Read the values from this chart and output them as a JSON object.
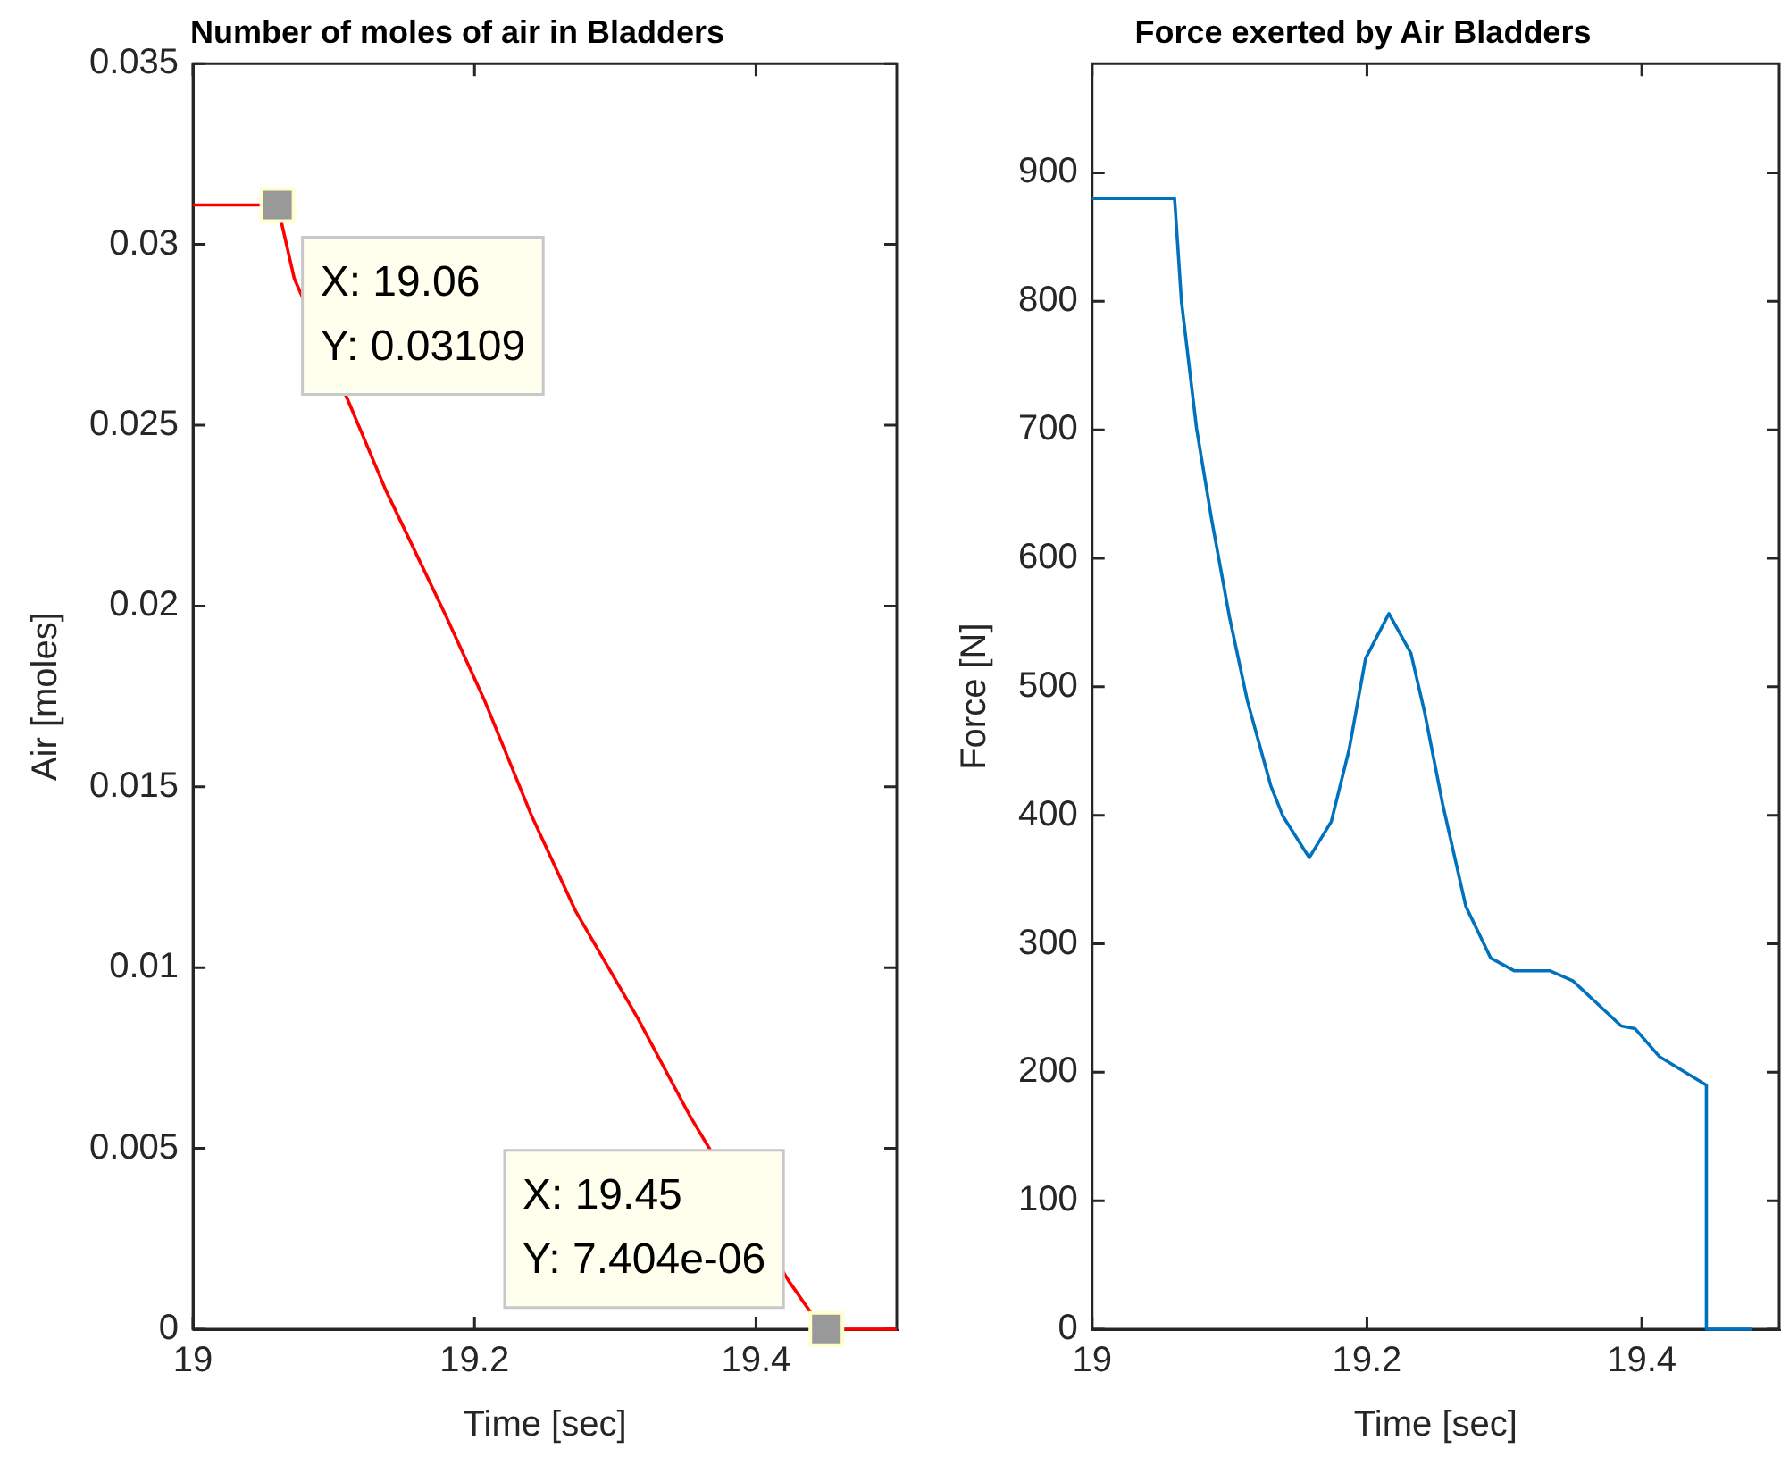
{
  "chart_data": [
    {
      "type": "line",
      "title": "Number of moles of air in Bladders",
      "xlabel": "Time [sec]",
      "ylabel": "Air [moles]",
      "xlim": [
        19,
        19.5
      ],
      "xticks": [
        19,
        19.2,
        19.4
      ],
      "ylim": [
        0,
        0.035
      ],
      "yticks": [
        0,
        0.005,
        0.01,
        0.015,
        0.02,
        0.025,
        0.03,
        0.035
      ],
      "series": [
        {
          "color": "#ff0000",
          "x": [
            19,
            19.06,
            19.072,
            19.11,
            19.137,
            19.18,
            19.207,
            19.24,
            19.272,
            19.316,
            19.353,
            19.423,
            19.44,
            19.45,
            19.5
          ],
          "values": [
            0.03109,
            0.03109,
            0.02905,
            0.0257,
            0.0232,
            0.0197,
            0.0174,
            0.01425,
            0.01155,
            0.0086,
            0.0059,
            0.00135,
            0.0004,
            7.404e-06,
            0
          ]
        }
      ],
      "annotations": [
        {
          "text": "X: 19.06\nY: 0.03109",
          "x": 19.06,
          "y": 0.03109
        },
        {
          "text": "X: 19.45\nY: 7.404e-06",
          "x": 19.45,
          "y": 7.404e-06
        }
      ]
    },
    {
      "type": "line",
      "title": "Force exerted by Air Bladders",
      "xlabel": "Time [sec]",
      "ylabel": "Force [N]",
      "xlim": [
        19,
        19.5
      ],
      "xticks": [
        19,
        19.2,
        19.4
      ],
      "ylim": [
        0,
        985
      ],
      "yticks": [
        0,
        100,
        200,
        300,
        400,
        500,
        600,
        700,
        800,
        900
      ],
      "series": [
        {
          "color": "#0072bd",
          "x": [
            19,
            19.06,
            19.065,
            19.076,
            19.087,
            19.1,
            19.113,
            19.13,
            19.139,
            19.158,
            19.174,
            19.187,
            19.199,
            19.216,
            19.232,
            19.242,
            19.255,
            19.272,
            19.29,
            19.307,
            19.333,
            19.35,
            19.385,
            19.395,
            19.413,
            19.447,
            19.447,
            19.48
          ],
          "values": [
            880,
            880,
            800,
            701,
            630,
            554,
            489,
            423,
            399,
            367,
            395,
            451,
            522,
            557,
            526,
            480,
            409,
            329,
            289,
            279,
            279,
            271,
            236,
            234,
            212,
            190,
            0,
            0
          ]
        }
      ]
    }
  ]
}
